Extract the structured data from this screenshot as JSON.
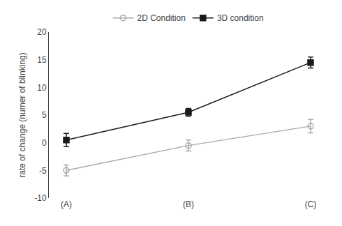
{
  "chart_data": {
    "type": "line",
    "categories": [
      "(A)",
      "(B)",
      "(C)"
    ],
    "series": [
      {
        "name": "2D Condition",
        "color": "#aaaaaa",
        "marker": "circle-open",
        "values": [
          -5.0,
          -0.5,
          3.0
        ],
        "yerr": [
          1.0,
          1.0,
          1.2
        ]
      },
      {
        "name": "3D condition",
        "color": "#1a1a1a",
        "marker": "square",
        "values": [
          0.5,
          5.5,
          14.5
        ],
        "yerr": [
          1.2,
          0.7,
          1.0
        ]
      }
    ],
    "ylabel": "rate of change (numer of blinking)",
    "ylim": [
      -10,
      20
    ],
    "yticks": [
      -10,
      -5,
      0,
      5,
      10,
      15,
      20
    ],
    "grid": false,
    "legend": "top"
  }
}
